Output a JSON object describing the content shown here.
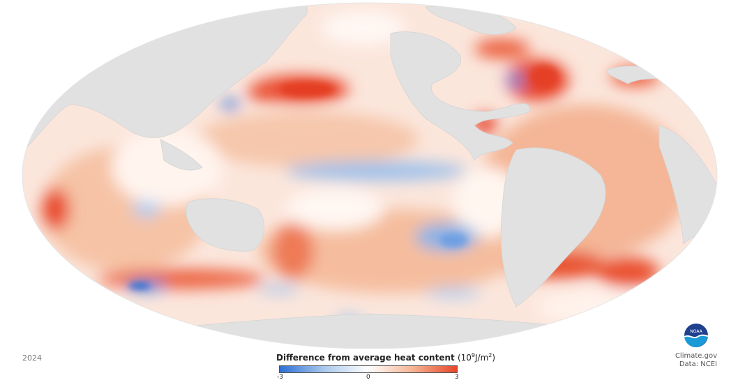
{
  "map": {
    "projection": "Mollweide",
    "land_color": "#e1e1e1",
    "ocean_background": "#fbe6dc"
  },
  "year_label": "2024",
  "legend": {
    "title": "Difference from average heat content",
    "unit_base": "(10",
    "unit_exp": "9",
    "unit_mid": "J/m",
    "unit_exp2": "2",
    "unit_end": ")",
    "min_label": "-3",
    "mid_label": "0",
    "max_label": "3",
    "colors": [
      "#2c6fd6",
      "#a9c8ec",
      "#ffffff",
      "#f4b493",
      "#e8452a"
    ]
  },
  "credit": {
    "line1": "Climate.gov",
    "line2": "Data: NCEI"
  },
  "logo": {
    "text": "NOAA",
    "colors": [
      "#1f3f8f",
      "#1a9ad6",
      "#ffffff"
    ]
  }
}
